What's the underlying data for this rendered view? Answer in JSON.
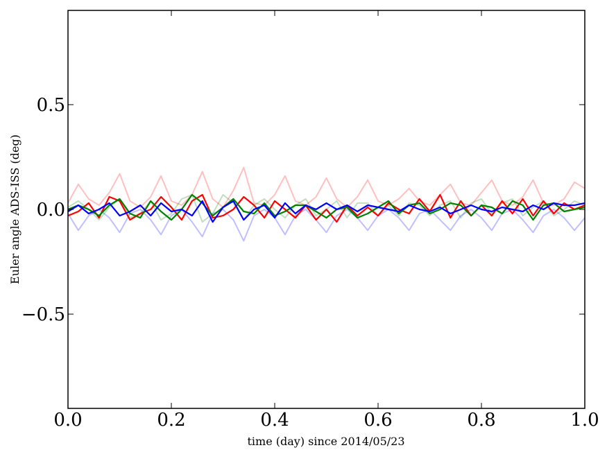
{
  "chart_data": {
    "type": "line",
    "title": "",
    "xlabel": "time (day) since 2014/05/23",
    "ylabel": "Euler angle ADS-ISS (deg)",
    "xlim": [
      0.0,
      1.0
    ],
    "ylim": [
      -0.95,
      0.95
    ],
    "xticks": [
      0.0,
      0.2,
      0.4,
      0.6,
      0.8,
      1.0
    ],
    "xtick_labels": [
      "0.0",
      "0.2",
      "0.4",
      "0.6",
      "0.8",
      "1.0"
    ],
    "yticks": [
      -0.5,
      0.0,
      0.5
    ],
    "ytick_labels": [
      "−0.5",
      "0.0",
      "0.5"
    ],
    "grid": false,
    "x": [
      0.0,
      0.02,
      0.04,
      0.06,
      0.08,
      0.1,
      0.12,
      0.14,
      0.16,
      0.18,
      0.2,
      0.22,
      0.24,
      0.26,
      0.28,
      0.3,
      0.32,
      0.34,
      0.36,
      0.38,
      0.4,
      0.42,
      0.44,
      0.46,
      0.48,
      0.5,
      0.52,
      0.54,
      0.56,
      0.58,
      0.6,
      0.62,
      0.64,
      0.66,
      0.68,
      0.7,
      0.72,
      0.74,
      0.76,
      0.78,
      0.8,
      0.82,
      0.84,
      0.86,
      0.88,
      0.9,
      0.92,
      0.94,
      0.96,
      0.98,
      1.0
    ],
    "series": [
      {
        "color": "#ff0000",
        "alpha": 0.25,
        "values": [
          0.03,
          0.12,
          0.05,
          0.02,
          0.08,
          0.17,
          0.04,
          0.01,
          0.06,
          0.16,
          0.04,
          0.02,
          0.07,
          0.18,
          0.05,
          0.01,
          0.09,
          0.2,
          0.03,
          0.02,
          0.07,
          0.16,
          0.04,
          0.02,
          0.06,
          0.15,
          0.05,
          0.01,
          0.06,
          0.14,
          0.04,
          0.02,
          0.05,
          0.1,
          0.04,
          0.02,
          0.07,
          0.12,
          0.03,
          0.02,
          0.08,
          0.14,
          0.04,
          0.02,
          0.06,
          0.14,
          0.03,
          0.02,
          0.05,
          0.13,
          0.1
        ]
      },
      {
        "color": "#008000",
        "alpha": 0.25,
        "values": [
          0.01,
          0.04,
          0.0,
          -0.05,
          0.01,
          0.05,
          -0.04,
          -0.02,
          0.04,
          -0.05,
          -0.02,
          0.05,
          0.07,
          -0.06,
          -0.02,
          0.07,
          0.03,
          -0.05,
          0.02,
          0.05,
          0.0,
          -0.04,
          0.02,
          0.05,
          -0.03,
          0.0,
          0.04,
          -0.04,
          0.03,
          0.03,
          -0.03,
          0.02,
          -0.03,
          0.03,
          0.02,
          -0.03,
          0.02,
          0.04,
          -0.04,
          0.03,
          0.05,
          -0.02,
          0.03,
          0.05,
          -0.03,
          0.01,
          0.04,
          -0.03,
          0.0,
          0.04,
          0.02
        ]
      },
      {
        "color": "#0000ff",
        "alpha": 0.25,
        "values": [
          -0.02,
          -0.1,
          -0.03,
          0.0,
          -0.04,
          -0.11,
          -0.02,
          0.0,
          -0.05,
          -0.12,
          -0.03,
          0.0,
          -0.06,
          -0.13,
          -0.02,
          0.0,
          -0.05,
          -0.15,
          -0.03,
          0.0,
          -0.04,
          -0.12,
          -0.03,
          0.0,
          -0.05,
          -0.11,
          -0.03,
          0.0,
          -0.04,
          -0.1,
          -0.03,
          0.0,
          -0.04,
          -0.1,
          -0.02,
          0.0,
          -0.05,
          -0.1,
          -0.03,
          0.0,
          -0.04,
          -0.1,
          -0.02,
          0.0,
          -0.05,
          -0.11,
          -0.03,
          0.0,
          -0.04,
          -0.1,
          -0.04
        ]
      },
      {
        "color": "#ff0000",
        "alpha": 1.0,
        "values": [
          -0.03,
          -0.01,
          0.03,
          -0.04,
          0.06,
          0.04,
          -0.05,
          -0.02,
          0.0,
          0.06,
          0.01,
          -0.05,
          0.04,
          0.07,
          -0.04,
          -0.03,
          0.0,
          0.06,
          0.02,
          -0.04,
          0.04,
          0.0,
          -0.04,
          0.02,
          -0.05,
          0.0,
          -0.06,
          0.02,
          -0.03,
          0.01,
          -0.03,
          0.03,
          0.0,
          -0.02,
          0.05,
          -0.01,
          0.07,
          -0.04,
          0.04,
          -0.03,
          0.02,
          -0.03,
          0.04,
          -0.02,
          0.05,
          -0.03,
          0.04,
          -0.02,
          0.03,
          0.0,
          0.02
        ]
      },
      {
        "color": "#008000",
        "alpha": 1.0,
        "values": [
          0.0,
          0.02,
          0.0,
          -0.03,
          0.02,
          0.05,
          -0.02,
          -0.04,
          0.04,
          -0.01,
          -0.05,
          0.0,
          0.07,
          0.03,
          -0.03,
          0.01,
          0.05,
          -0.01,
          -0.02,
          0.03,
          -0.03,
          -0.01,
          0.02,
          0.02,
          -0.01,
          -0.04,
          0.0,
          0.01,
          -0.04,
          -0.02,
          0.01,
          0.04,
          -0.02,
          0.02,
          0.03,
          -0.02,
          0.0,
          0.03,
          0.02,
          -0.03,
          0.02,
          0.01,
          -0.02,
          0.04,
          0.02,
          -0.05,
          0.02,
          0.03,
          -0.01,
          0.0,
          0.01
        ]
      },
      {
        "color": "#0000ff",
        "alpha": 1.0,
        "values": [
          -0.01,
          0.02,
          -0.02,
          0.0,
          0.03,
          -0.03,
          -0.01,
          0.02,
          -0.03,
          0.03,
          -0.01,
          0.0,
          -0.03,
          0.04,
          -0.06,
          0.01,
          0.04,
          -0.05,
          0.0,
          0.02,
          -0.04,
          0.03,
          -0.02,
          0.02,
          0.0,
          0.03,
          0.0,
          0.02,
          -0.01,
          0.02,
          0.01,
          0.0,
          -0.01,
          0.02,
          0.0,
          -0.01,
          0.01,
          -0.02,
          0.0,
          0.02,
          0.0,
          -0.01,
          0.01,
          0.0,
          -0.01,
          0.02,
          0.0,
          0.03,
          0.02,
          0.02,
          0.03
        ]
      }
    ]
  }
}
